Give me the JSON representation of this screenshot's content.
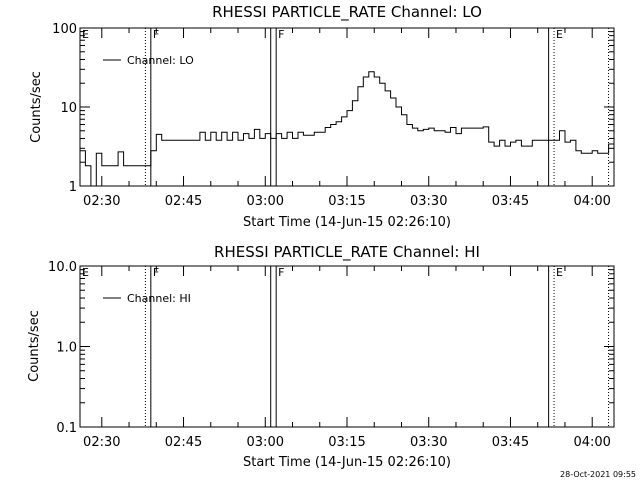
{
  "chart_data": [
    {
      "type": "line",
      "title": "RHESSI PARTICLE_RATE Channel: LO",
      "xlabel": "Start Time (14-Jun-15 02:26:10)",
      "ylabel": "Counts/sec",
      "y_scale": "log",
      "ylim": [
        1,
        100
      ],
      "y_ticks": [
        {
          "value": 1,
          "label": "1"
        },
        {
          "value": 10,
          "label": "10"
        },
        {
          "value": 100,
          "label": "100"
        }
      ],
      "xlim": [
        "02:26",
        "04:04"
      ],
      "x_ticks": [
        "02:30",
        "02:45",
        "03:00",
        "03:15",
        "03:30",
        "03:45",
        "04:00"
      ],
      "legend": {
        "position": "top-left",
        "entries": [
          "Channel: LO"
        ]
      },
      "grid": false,
      "markers": [
        {
          "time": "02:26",
          "label": "E",
          "style": "none"
        },
        {
          "time": "02:38",
          "label": "",
          "style": "dotted"
        },
        {
          "time": "02:39",
          "label": "F",
          "style": "solid"
        },
        {
          "time": "03:01",
          "label": "",
          "style": "solid"
        },
        {
          "time": "03:02",
          "label": "F",
          "style": "solid"
        },
        {
          "time": "03:52",
          "label": "",
          "style": "solid"
        },
        {
          "time": "03:53",
          "label": "E",
          "style": "dotted"
        },
        {
          "time": "04:03",
          "label": "",
          "style": "dotted"
        }
      ],
      "series": [
        {
          "name": "Channel: LO",
          "x": [
            "02:26",
            "02:27",
            "02:28",
            "02:29",
            "02:30",
            "02:31",
            "02:32",
            "02:33",
            "02:34",
            "02:35",
            "02:36",
            "02:37",
            "02:38",
            "02:39",
            "02:40",
            "02:41",
            "02:42",
            "02:43",
            "02:44",
            "02:45",
            "02:46",
            "02:47",
            "02:48",
            "02:49",
            "02:50",
            "02:51",
            "02:52",
            "02:53",
            "02:54",
            "02:55",
            "02:56",
            "02:57",
            "02:58",
            "02:59",
            "03:00",
            "03:01",
            "03:02",
            "03:03",
            "03:04",
            "03:05",
            "03:06",
            "03:07",
            "03:08",
            "03:09",
            "03:10",
            "03:11",
            "03:12",
            "03:13",
            "03:14",
            "03:15",
            "03:16",
            "03:17",
            "03:18",
            "03:19",
            "03:20",
            "03:21",
            "03:22",
            "03:23",
            "03:24",
            "03:25",
            "03:26",
            "03:27",
            "03:28",
            "03:29",
            "03:30",
            "03:31",
            "03:32",
            "03:33",
            "03:34",
            "03:35",
            "03:36",
            "03:37",
            "03:38",
            "03:39",
            "03:40",
            "03:41",
            "03:42",
            "03:43",
            "03:44",
            "03:45",
            "03:46",
            "03:47",
            "03:48",
            "03:49",
            "03:50",
            "03:51",
            "03:52",
            "03:53",
            "03:54",
            "03:55",
            "03:56",
            "03:57",
            "03:58",
            "03:59",
            "04:00",
            "04:01",
            "04:02",
            "04:03"
          ],
          "values": [
            2.8,
            1.8,
            1.0,
            2.6,
            1.8,
            1.8,
            1.8,
            2.7,
            1.8,
            1.8,
            1.8,
            1.8,
            1.8,
            2.8,
            4.5,
            3.8,
            3.8,
            3.8,
            3.8,
            3.8,
            3.8,
            3.8,
            4.8,
            3.8,
            4.8,
            3.8,
            4.8,
            3.8,
            4.8,
            3.8,
            4.6,
            4.0,
            5.2,
            4.0,
            4.6,
            4.0,
            4.6,
            4.0,
            4.8,
            4.0,
            4.8,
            4.4,
            4.4,
            4.8,
            4.8,
            5.5,
            6.0,
            6.5,
            7.5,
            9.0,
            12.0,
            18.0,
            24.0,
            28.0,
            24.0,
            20.0,
            16.0,
            13.0,
            10.0,
            8.0,
            6.0,
            5.4,
            5.0,
            5.2,
            5.4,
            5.0,
            5.0,
            4.8,
            5.5,
            4.6,
            5.4,
            5.4,
            5.4,
            5.4,
            5.6,
            3.6,
            3.2,
            3.8,
            3.2,
            3.6,
            3.8,
            3.2,
            3.2,
            3.8,
            3.8,
            3.8,
            3.8,
            3.8,
            5.0,
            3.6,
            3.8,
            2.8,
            2.6,
            2.6,
            2.8,
            2.6,
            2.6,
            3.4
          ]
        }
      ]
    },
    {
      "type": "line",
      "title": "RHESSI PARTICLE_RATE Channel: HI",
      "xlabel": "Start Time (14-Jun-15 02:26:10)",
      "ylabel": "Counts/sec",
      "y_scale": "log",
      "ylim": [
        0.1,
        10
      ],
      "y_ticks": [
        {
          "value": 0.1,
          "label": "0.1"
        },
        {
          "value": 1,
          "label": "1.0"
        },
        {
          "value": 10,
          "label": "10.0"
        }
      ],
      "xlim": [
        "02:26",
        "04:04"
      ],
      "x_ticks": [
        "02:30",
        "02:45",
        "03:00",
        "03:15",
        "03:30",
        "03:45",
        "04:00"
      ],
      "legend": {
        "position": "top-left",
        "entries": [
          "Channel: HI"
        ]
      },
      "grid": false,
      "markers": [
        {
          "time": "02:26",
          "label": "E",
          "style": "none"
        },
        {
          "time": "02:38",
          "label": "",
          "style": "dotted"
        },
        {
          "time": "02:39",
          "label": "F",
          "style": "solid"
        },
        {
          "time": "03:01",
          "label": "",
          "style": "solid"
        },
        {
          "time": "03:02",
          "label": "F",
          "style": "solid"
        },
        {
          "time": "03:52",
          "label": "",
          "style": "solid"
        },
        {
          "time": "03:53",
          "label": "E",
          "style": "dotted"
        },
        {
          "time": "04:03",
          "label": "",
          "style": "dotted"
        }
      ],
      "series": [
        {
          "name": "Channel: HI",
          "x": [],
          "values": []
        }
      ]
    }
  ],
  "footer": {
    "timestamp": "28-Oct-2021 09:55"
  }
}
